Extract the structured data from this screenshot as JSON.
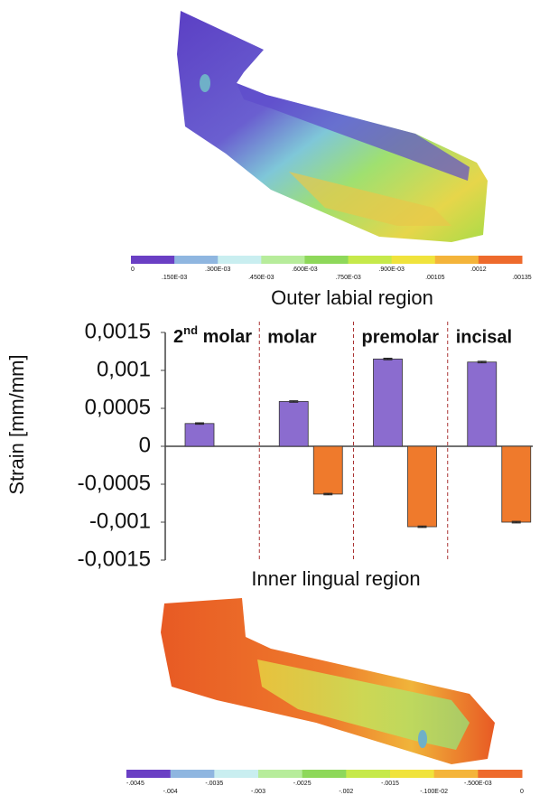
{
  "chart_data": {
    "type": "bar",
    "y_label": "Strain [mm/mm]",
    "categories": [
      "2nd molar",
      "molar",
      "premolar",
      "incisal"
    ],
    "series": [
      {
        "name": "Outer labial region",
        "color": "#8b6ccf",
        "values": [
          0.0003,
          0.00059,
          0.00115,
          0.00111
        ],
        "errors": [
          1e-05,
          1e-05,
          1e-05,
          1e-05
        ]
      },
      {
        "name": "Inner lingual region",
        "color": "#ef7a2c",
        "values": [
          null,
          -0.00063,
          -0.00106,
          -0.001
        ],
        "errors": [
          null,
          1e-05,
          1e-05,
          1e-05
        ]
      }
    ],
    "ylim": [
      -0.0015,
      0.0015
    ],
    "yticks": [
      {
        "value": 0.0015,
        "label": "0,0015"
      },
      {
        "value": 0.001,
        "label": "0,001"
      },
      {
        "value": 0.0005,
        "label": "0,0005"
      },
      0,
      {
        "value": -0.0005,
        "label": "-0,0005"
      },
      {
        "value": -0.001,
        "label": "-0,001"
      },
      {
        "value": -0.0015,
        "label": "-0,0015"
      }
    ]
  },
  "figure": {
    "top_colorbar": {
      "colors": [
        "#6a3fc4",
        "#8fb6e0",
        "#c9eef0",
        "#b7ec9b",
        "#8ed85a",
        "#c6e94a",
        "#f0e33c",
        "#f4b43a",
        "#ee6a2c"
      ],
      "labels": [
        "0",
        ".150E-03",
        ".300E-03",
        ".450E-03",
        ".600E-03",
        ".750E-03",
        ".900E-03",
        ".00105",
        ".0012",
        ".00135"
      ]
    },
    "bottom_colorbar": {
      "colors": [
        "#6a3fc4",
        "#8fb6e0",
        "#c9eef0",
        "#b7ec9b",
        "#8ed85a",
        "#c6e94a",
        "#f0e33c",
        "#f4b43a",
        "#ee6a2c"
      ],
      "labels": [
        "-.0045",
        "-.004",
        "-.0035",
        "-.003",
        "-.0025",
        "-.002",
        "-.0015",
        "-.100E-02",
        "-.500E-03",
        "0"
      ]
    }
  }
}
